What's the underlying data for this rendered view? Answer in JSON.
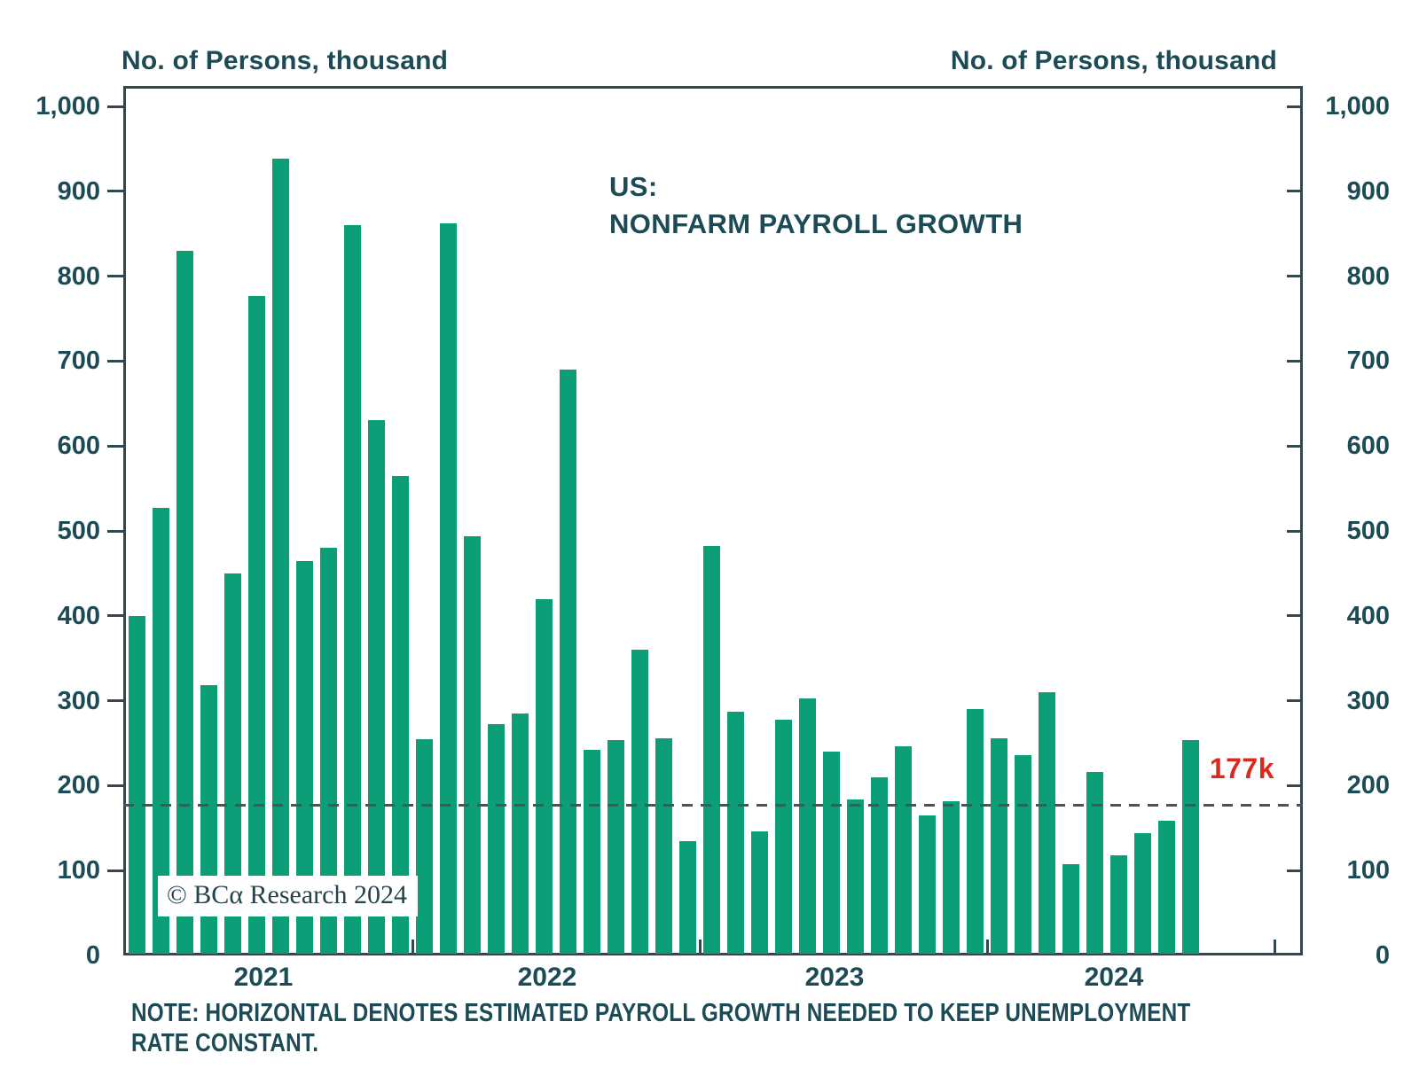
{
  "axis_titles": {
    "left": "No. of Persons, thousand",
    "right": "No. of Persons, thousand"
  },
  "title": {
    "line1": "US:",
    "line2": "NONFARM PAYROLL GROWTH"
  },
  "reference": {
    "label": "177k"
  },
  "watermark": "© BCα Research 2024",
  "note": {
    "line1": "NOTE: HORIZONTAL DENOTES ESTIMATED PAYROLL GROWTH NEEDED TO KEEP UNEMPLOYMENT",
    "line2": "RATE CONSTANT."
  },
  "colors": {
    "bar": "#0b9e77",
    "text": "#1d4b55",
    "axis": "#33484e",
    "dashed_line": "#4a5357",
    "reference_label": "#d92a1c"
  },
  "chart_data": {
    "type": "bar",
    "title": "US: NONFARM PAYROLL GROWTH",
    "ylabel": "No. of Persons, thousand",
    "unit": "thousand persons (monthly nonfarm payroll change)",
    "ylim": [
      0,
      1000
    ],
    "grid": false,
    "y_ticks": [
      0,
      100,
      200,
      300,
      400,
      500,
      600,
      700,
      800,
      900,
      1000
    ],
    "y_tick_labels": [
      "0",
      "100",
      "200",
      "300",
      "400",
      "500",
      "600",
      "700",
      "800",
      "900",
      "1,000"
    ],
    "x_tick_labels": [
      "2021",
      "2022",
      "2023",
      "2024"
    ],
    "reference_line": {
      "value": 177,
      "label": "177k",
      "meaning": "estimated payroll growth needed to keep unemployment rate constant"
    },
    "years": [
      {
        "year": "2021",
        "values": [
          400,
          527,
          830,
          318,
          450,
          777,
          938,
          465,
          480,
          860,
          631,
          565
        ]
      },
      {
        "year": "2022",
        "values": [
          255,
          862,
          494,
          272,
          285,
          420,
          690,
          242,
          254,
          360,
          256,
          135
        ]
      },
      {
        "year": "2023",
        "values": [
          482,
          287,
          146,
          278,
          303,
          240,
          184,
          210,
          246,
          165,
          182,
          290
        ]
      },
      {
        "year": "2024",
        "values": [
          256,
          236,
          310,
          108,
          216,
          118,
          144,
          159,
          254
        ]
      }
    ]
  }
}
